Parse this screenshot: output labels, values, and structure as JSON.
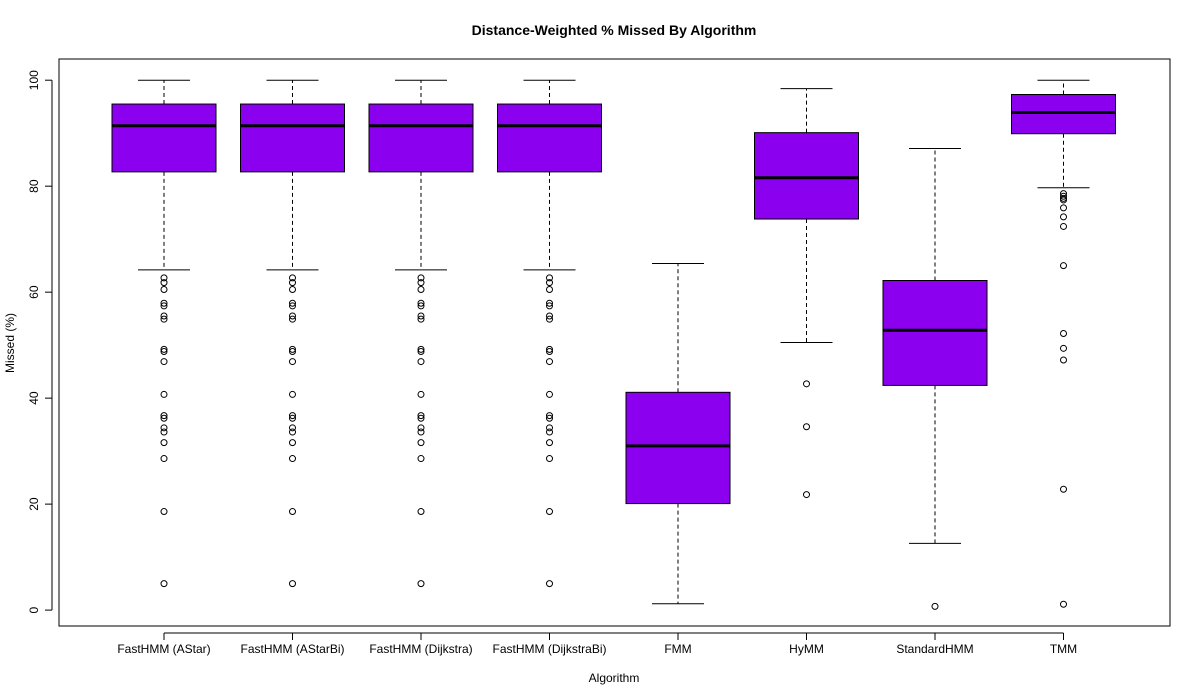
{
  "chart_data": {
    "type": "boxplot",
    "title": "Distance-Weighted % Missed By Algorithm",
    "xlabel": "Algorithm",
    "ylabel": "Missed (%)",
    "ylim": [
      -3,
      104
    ],
    "yticks": [
      0,
      20,
      40,
      60,
      80,
      100
    ],
    "box_color": "#8B00EE",
    "grid": false,
    "categories": [
      "FastHMM (AStar)",
      "FastHMM (AStarBi)",
      "FastHMM (Dijkstra)",
      "FastHMM (DijkstraBi)",
      "FMM",
      "HyMM",
      "StandardHMM",
      "TMM"
    ],
    "boxes": [
      {
        "whisker_low": 64.2,
        "q1": 82.7,
        "median": 91.4,
        "q3": 95.5,
        "whisker_high": 100,
        "outliers": [
          62.7,
          61.8,
          60.5,
          57.9,
          57.4,
          55.5,
          54.9,
          49.2,
          48.8,
          46.9,
          40.7,
          36.7,
          36.2,
          34.4,
          33.6,
          31.6,
          28.6,
          18.6,
          5.0
        ]
      },
      {
        "whisker_low": 64.2,
        "q1": 82.7,
        "median": 91.4,
        "q3": 95.5,
        "whisker_high": 100,
        "outliers": [
          62.7,
          61.8,
          60.5,
          57.9,
          57.4,
          55.5,
          54.9,
          49.2,
          48.8,
          46.9,
          40.7,
          36.7,
          36.2,
          34.4,
          33.6,
          31.6,
          28.6,
          18.6,
          5.0
        ]
      },
      {
        "whisker_low": 64.2,
        "q1": 82.7,
        "median": 91.4,
        "q3": 95.5,
        "whisker_high": 100,
        "outliers": [
          62.7,
          61.8,
          60.5,
          57.9,
          57.4,
          55.5,
          54.9,
          49.2,
          48.8,
          46.9,
          40.7,
          36.7,
          36.2,
          34.4,
          33.6,
          31.6,
          28.6,
          18.6,
          5.0
        ]
      },
      {
        "whisker_low": 64.2,
        "q1": 82.7,
        "median": 91.4,
        "q3": 95.5,
        "whisker_high": 100,
        "outliers": [
          62.7,
          61.8,
          60.5,
          57.9,
          57.4,
          55.5,
          54.9,
          49.2,
          48.8,
          46.9,
          40.7,
          36.7,
          36.2,
          34.4,
          33.6,
          31.6,
          28.6,
          18.6,
          5.0
        ]
      },
      {
        "whisker_low": 1.2,
        "q1": 20.1,
        "median": 31.0,
        "q3": 41.1,
        "whisker_high": 65.4,
        "outliers": []
      },
      {
        "whisker_low": 50.5,
        "q1": 73.8,
        "median": 81.6,
        "q3": 90.1,
        "whisker_high": 98.4,
        "outliers": [
          42.7,
          34.6,
          21.8
        ]
      },
      {
        "whisker_low": 12.6,
        "q1": 42.4,
        "median": 52.8,
        "q3": 62.2,
        "whisker_high": 87.1,
        "outliers": [
          0.7
        ]
      },
      {
        "whisker_low": 79.7,
        "q1": 89.9,
        "median": 93.9,
        "q3": 97.3,
        "whisker_high": 100,
        "outliers": [
          78.6,
          78.1,
          77.7,
          77.4,
          75.9,
          74.2,
          72.4,
          65.0,
          52.2,
          49.4,
          47.2,
          22.8,
          1.1
        ]
      }
    ]
  }
}
